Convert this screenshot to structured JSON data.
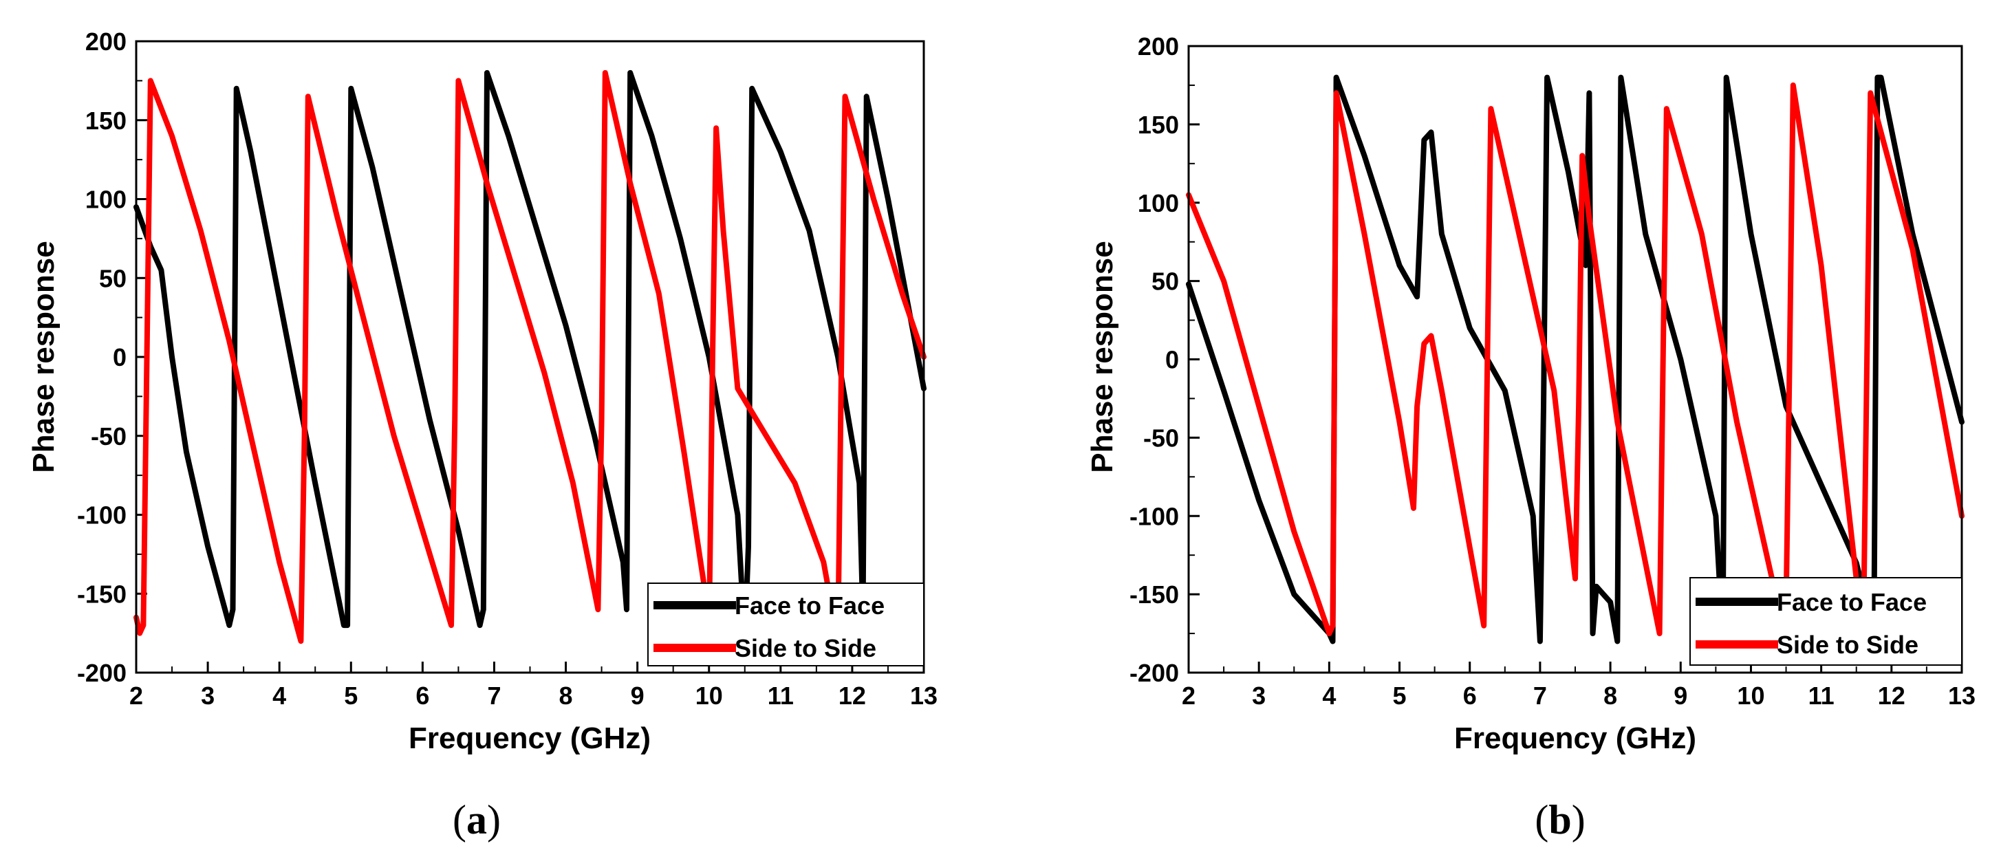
{
  "chart_data": [
    {
      "panel_id": "a",
      "caption_open": "(",
      "caption_letter": "a",
      "caption_close": ")",
      "type": "line",
      "xlabel": "Frequency (GHz)",
      "ylabel": "Phase response",
      "xlim": [
        2,
        13
      ],
      "ylim": [
        -200,
        200
      ],
      "xticks": [
        2,
        3,
        4,
        5,
        6,
        7,
        8,
        9,
        10,
        11,
        12,
        13
      ],
      "yticks": [
        200,
        150,
        100,
        50,
        0,
        -50,
        -100,
        -150,
        -200
      ],
      "legend": {
        "location": "bottom-right",
        "entries": [
          "Face to Face",
          "Side to Side"
        ]
      },
      "series": [
        {
          "name": "Face to Face",
          "color": "#000000",
          "x": [
            2.0,
            2.2,
            2.35,
            2.5,
            2.7,
            3.0,
            3.3,
            3.35,
            3.4,
            3.6,
            3.9,
            4.2,
            4.5,
            4.9,
            4.95,
            5.0,
            5.3,
            5.7,
            6.1,
            6.5,
            6.8,
            6.85,
            6.9,
            7.2,
            7.6,
            8.0,
            8.4,
            8.8,
            8.85,
            8.9,
            9.2,
            9.6,
            10.0,
            10.4,
            10.5,
            10.55,
            10.6,
            11.0,
            11.4,
            11.8,
            12.1,
            12.15,
            12.2,
            12.5,
            13.0
          ],
          "y": [
            95,
            70,
            55,
            0,
            -60,
            -120,
            -170,
            -160,
            170,
            130,
            60,
            -10,
            -80,
            -170,
            -170,
            170,
            120,
            40,
            -40,
            -110,
            -170,
            -160,
            180,
            140,
            80,
            20,
            -50,
            -130,
            -160,
            180,
            140,
            75,
            0,
            -100,
            -180,
            -120,
            170,
            130,
            80,
            0,
            -80,
            -165,
            165,
            100,
            -20
          ]
        },
        {
          "name": "Side to Side",
          "color": "#ff0000",
          "x": [
            2.0,
            2.05,
            2.1,
            2.2,
            2.5,
            2.9,
            3.3,
            3.7,
            4.0,
            4.3,
            4.35,
            4.4,
            4.8,
            5.2,
            5.6,
            6.0,
            6.4,
            6.45,
            6.5,
            6.9,
            7.3,
            7.7,
            8.1,
            8.45,
            8.5,
            8.55,
            8.9,
            9.3,
            9.65,
            9.95,
            10.0,
            10.05,
            10.1,
            10.2,
            10.4,
            10.8,
            11.2,
            11.6,
            11.8,
            11.85,
            11.9,
            12.3,
            12.7,
            13.0
          ],
          "y": [
            -165,
            -175,
            -170,
            175,
            140,
            80,
            10,
            -70,
            -130,
            -180,
            -50,
            165,
            90,
            20,
            -50,
            -110,
            -170,
            -40,
            175,
            110,
            50,
            -10,
            -80,
            -160,
            -40,
            180,
            110,
            40,
            -60,
            -150,
            -180,
            0,
            145,
            80,
            -20,
            -50,
            -80,
            -130,
            -180,
            0,
            165,
            100,
            40,
            0
          ]
        }
      ]
    },
    {
      "panel_id": "b",
      "caption_open": "(",
      "caption_letter": "b",
      "caption_close": ")",
      "type": "line",
      "xlabel": "Frequency (GHz)",
      "ylabel": "Phase response",
      "xlim": [
        2,
        13
      ],
      "ylim": [
        -200,
        200
      ],
      "xticks": [
        2,
        3,
        4,
        5,
        6,
        7,
        8,
        9,
        10,
        11,
        12,
        13
      ],
      "yticks": [
        200,
        150,
        100,
        50,
        0,
        -50,
        -100,
        -150,
        -200
      ],
      "legend": {
        "location": "bottom-right",
        "entries": [
          "Face to Face",
          "Side to Side"
        ]
      },
      "series": [
        {
          "name": "Face to Face",
          "color": "#000000",
          "x": [
            2.0,
            2.5,
            3.0,
            3.5,
            4.0,
            4.05,
            4.1,
            4.5,
            5.0,
            5.25,
            5.35,
            5.45,
            5.6,
            6.0,
            6.5,
            6.9,
            7.0,
            7.05,
            7.1,
            7.4,
            7.65,
            7.7,
            7.75,
            7.8,
            8.0,
            8.1,
            8.15,
            8.5,
            9.0,
            9.5,
            9.6,
            9.65,
            10.0,
            10.5,
            11.0,
            11.5,
            11.75,
            11.8,
            11.85,
            12.3,
            13.0
          ],
          "y": [
            48,
            -20,
            -90,
            -150,
            -175,
            -180,
            180,
            130,
            60,
            40,
            140,
            145,
            80,
            20,
            -20,
            -100,
            -180,
            -30,
            180,
            120,
            60,
            170,
            -175,
            -145,
            -155,
            -180,
            180,
            80,
            0,
            -100,
            -180,
            180,
            80,
            -30,
            -80,
            -130,
            -175,
            180,
            180,
            80,
            -40
          ]
        },
        {
          "name": "Side to Side",
          "color": "#ff0000",
          "x": [
            2.0,
            2.5,
            3.0,
            3.5,
            4.0,
            4.05,
            4.1,
            4.5,
            5.0,
            5.2,
            5.25,
            5.35,
            5.45,
            5.6,
            6.0,
            6.2,
            6.25,
            6.3,
            6.7,
            7.2,
            7.5,
            7.55,
            7.6,
            7.7,
            8.1,
            8.7,
            8.75,
            8.8,
            9.3,
            9.8,
            10.3,
            10.5,
            10.55,
            10.6,
            11.0,
            11.5,
            11.6,
            11.65,
            11.7,
            12.3,
            13.0
          ],
          "y": [
            105,
            50,
            -30,
            -110,
            -175,
            -170,
            170,
            80,
            -40,
            -95,
            -30,
            10,
            15,
            -20,
            -120,
            -170,
            0,
            160,
            80,
            -20,
            -140,
            -30,
            130,
            90,
            -40,
            -175,
            0,
            160,
            80,
            -40,
            -140,
            -160,
            0,
            175,
            60,
            -140,
            -175,
            0,
            170,
            70,
            -100
          ]
        }
      ]
    }
  ]
}
